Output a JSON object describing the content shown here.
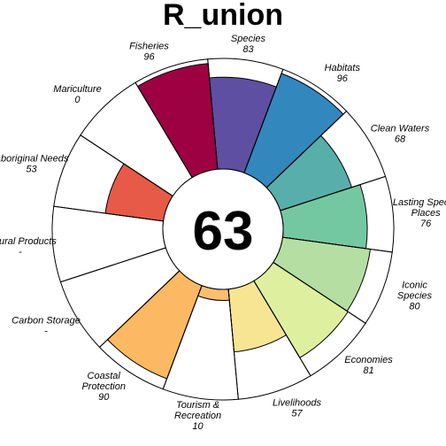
{
  "chart_data": {
    "type": "flower",
    "title": "R_union",
    "center_score": "63",
    "max_value": 100,
    "petals": [
      {
        "name": "Natural Products",
        "lines": [
          "Natural Products"
        ],
        "value_text": "-",
        "value": null,
        "color": "#ffffff"
      },
      {
        "name": "Aboriginal Needs",
        "lines": [
          "Aboriginal Needs"
        ],
        "value_text": "53",
        "value": 53,
        "color": "#e75a47"
      },
      {
        "name": "Mariculture",
        "lines": [
          "Mariculture"
        ],
        "value_text": "0",
        "value": 0,
        "color": "#f46d43"
      },
      {
        "name": "Fisheries",
        "lines": [
          "Fisheries"
        ],
        "value_text": "96",
        "value": 96,
        "color": "#9e0142"
      },
      {
        "name": "Species",
        "lines": [
          "Species"
        ],
        "value_text": "83",
        "value": 83,
        "color": "#5e4fa2"
      },
      {
        "name": "Habitats",
        "lines": [
          "Habitats"
        ],
        "value_text": "96",
        "value": 96,
        "color": "#3288bd"
      },
      {
        "name": "Clean Waters",
        "lines": [
          "Clean Waters"
        ],
        "value_text": "68",
        "value": 68,
        "color": "#58aeaa"
      },
      {
        "name": "Lasting Special Places",
        "lines": [
          "Lasting Special",
          "Places"
        ],
        "value_text": "76",
        "value": 76,
        "color": "#74c8a1"
      },
      {
        "name": "Iconic Species",
        "lines": [
          "Iconic",
          "Species"
        ],
        "value_text": "80",
        "value": 80,
        "color": "#b5dfa2"
      },
      {
        "name": "Economies",
        "lines": [
          "Economies"
        ],
        "value_text": "81",
        "value": 81,
        "color": "#deefa0"
      },
      {
        "name": "Livelihoods",
        "lines": [
          "Livelihoods"
        ],
        "value_text": "57",
        "value": 57,
        "color": "#f8e593"
      },
      {
        "name": "Tourism & Recreation",
        "lines": [
          "Tourism &",
          "Recreation"
        ],
        "value_text": "10",
        "value": 10,
        "color": "#fdbf6f"
      },
      {
        "name": "Coastal Protection",
        "lines": [
          "Coastal",
          "Protection"
        ],
        "value_text": "90",
        "value": 90,
        "color": "#fdb863"
      },
      {
        "name": "Carbon Storage",
        "lines": [
          "Carbon Storage"
        ],
        "value_text": "-",
        "value": null,
        "color": "#ffffff"
      }
    ]
  }
}
